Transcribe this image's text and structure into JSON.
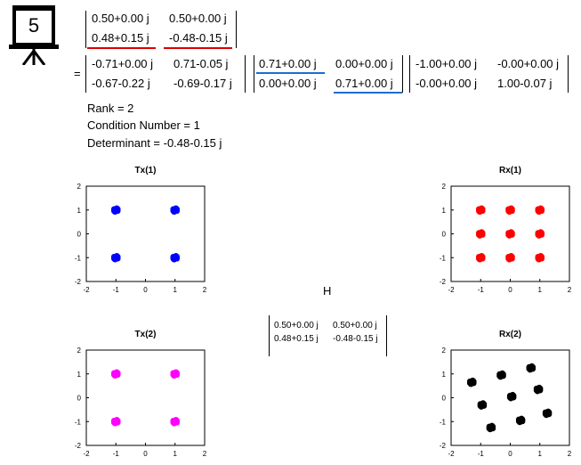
{
  "slide_icon": {
    "icon": "presentation-board-icon",
    "number": "5"
  },
  "top_matrix": {
    "rows": [
      [
        "0.50+0.00 j",
        "0.50+0.00 j"
      ],
      [
        "0.48+0.15 j",
        "-0.48-0.15 j"
      ]
    ],
    "underline_colors": [
      "#dd0000",
      "#dd0000"
    ]
  },
  "svd": {
    "equals": "=",
    "U": [
      [
        "-0.71+0.00 j",
        "0.71-0.05 j"
      ],
      [
        "-0.67-0.22 j",
        "-0.69-0.17 j"
      ]
    ],
    "S": [
      [
        "0.71+0.00 j",
        "0.00+0.00 j"
      ],
      [
        "0.00+0.00 j",
        "0.71+0.00 j"
      ]
    ],
    "S_underline_color": "#1a6fd1",
    "V": [
      [
        "-1.00+0.00 j",
        "-0.00+0.00 j"
      ],
      [
        "-0.00+0.00 j",
        "1.00-0.07 j"
      ]
    ]
  },
  "stats": {
    "rank": "Rank = 2",
    "condition": "Condition Number = 1",
    "determinant": "Determinant = -0.48-0.15 j"
  },
  "channel": {
    "label": "H",
    "rows": [
      [
        "0.50+0.00 j",
        "0.50+0.00 j"
      ],
      [
        "0.48+0.15 j",
        "-0.48-0.15 j"
      ]
    ]
  },
  "chart_data": [
    {
      "type": "scatter",
      "title": "Tx(1)",
      "color": "#0000ff",
      "xlim": [
        -2,
        2
      ],
      "ylim": [
        -2,
        2
      ],
      "xticks": [
        "-2",
        "-1",
        "0",
        "1",
        "2"
      ],
      "yticks": [
        "2",
        "1",
        "0",
        "-1",
        "-2"
      ],
      "points": [
        [
          -1,
          1
        ],
        [
          1,
          1
        ],
        [
          -1,
          -1
        ],
        [
          1,
          -1
        ]
      ]
    },
    {
      "type": "scatter",
      "title": "Rx(1)",
      "color": "#ff0000",
      "xlim": [
        -2,
        2
      ],
      "ylim": [
        -2,
        2
      ],
      "xticks": [
        "-2",
        "-1",
        "0",
        "1",
        "2"
      ],
      "yticks": [
        "2",
        "1",
        "0",
        "-1",
        "-2"
      ],
      "points": [
        [
          -1,
          1
        ],
        [
          0,
          1
        ],
        [
          1,
          1
        ],
        [
          -1,
          0
        ],
        [
          0,
          0
        ],
        [
          1,
          0
        ],
        [
          -1,
          -1
        ],
        [
          0,
          -1
        ],
        [
          1,
          -1
        ]
      ]
    },
    {
      "type": "scatter",
      "title": "Tx(2)",
      "color": "#ff00ff",
      "xlim": [
        -2,
        2
      ],
      "ylim": [
        -2,
        2
      ],
      "xticks": [
        "-2",
        "-1",
        "0",
        "1",
        "2"
      ],
      "yticks": [
        "2",
        "1",
        "0",
        "-1",
        "-2"
      ],
      "points": [
        [
          -1,
          1
        ],
        [
          1,
          1
        ],
        [
          -1,
          -1
        ],
        [
          1,
          -1
        ]
      ]
    },
    {
      "type": "scatter",
      "title": "Rx(2)",
      "color": "#000000",
      "xlim": [
        -2,
        2
      ],
      "ylim": [
        -2,
        2
      ],
      "xticks": [
        "-2",
        "-1",
        "0",
        "1",
        "2"
      ],
      "yticks": [
        "2",
        "1",
        "0",
        "-1",
        "-2"
      ],
      "points": [
        [
          -1.3,
          0.65
        ],
        [
          -0.3,
          0.95
        ],
        [
          0.7,
          1.25
        ],
        [
          -0.95,
          -0.3
        ],
        [
          0.05,
          0.05
        ],
        [
          0.95,
          0.35
        ],
        [
          -0.65,
          -1.25
        ],
        [
          0.35,
          -0.95
        ],
        [
          1.25,
          -0.65
        ]
      ]
    }
  ]
}
